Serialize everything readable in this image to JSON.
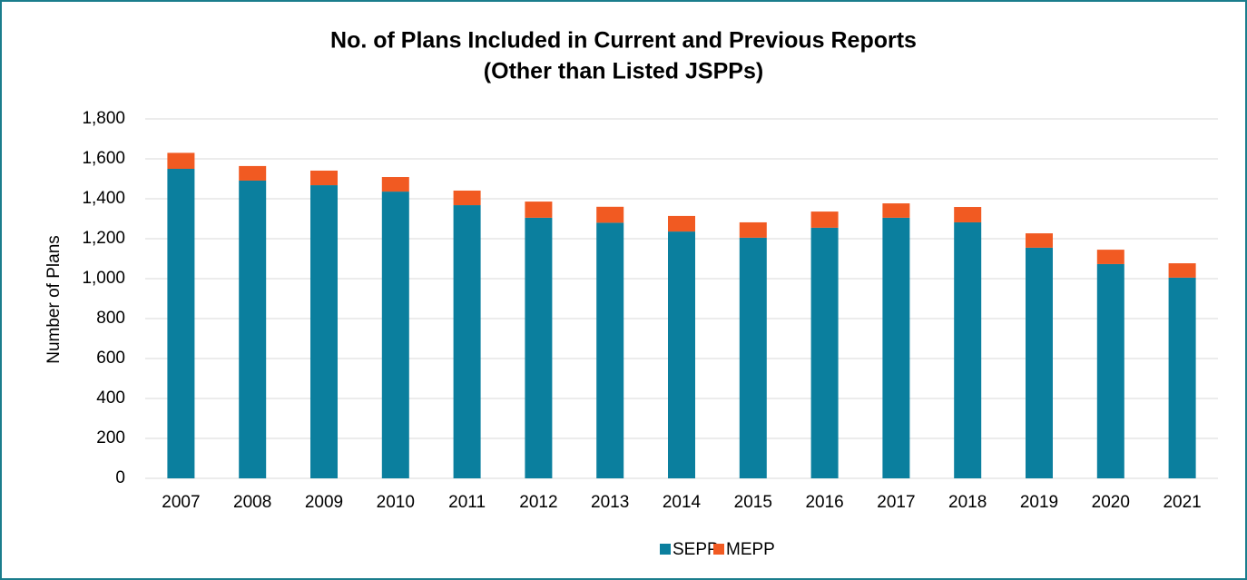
{
  "chart_data": {
    "type": "stacked_bar",
    "title": [
      "No. of Plans Included in Current and Previous Reports",
      "(Other than Listed JSPPs)"
    ],
    "y_label": "Number of Plans",
    "categories": [
      "2007",
      "2008",
      "2009",
      "2010",
      "2011",
      "2012",
      "2013",
      "2014",
      "2015",
      "2016",
      "2017",
      "2018",
      "2019",
      "2020",
      "2021"
    ],
    "series": [
      {
        "name": "SEPP",
        "color": "#0b7f9e",
        "values": [
          1550,
          1491,
          1468,
          1436,
          1368,
          1305,
          1280,
          1236,
          1205,
          1255,
          1305,
          1282,
          1155,
          1073,
          1005
        ]
      },
      {
        "name": "MEPP",
        "color": "#f15a22",
        "values": [
          80,
          73,
          73,
          73,
          73,
          81,
          80,
          78,
          77,
          81,
          72,
          77,
          72,
          72,
          72
        ]
      }
    ],
    "ylim": [
      0,
      1800
    ],
    "yticks": [
      0,
      200,
      400,
      600,
      800,
      {
        "value": 1000,
        "label": "1,000"
      },
      {
        "value": 1200,
        "label": "1,200"
      },
      {
        "value": 1400,
        "label": "1,400"
      },
      {
        "value": 1600,
        "label": "1,600"
      },
      {
        "value": 1800,
        "label": "1,800"
      }
    ],
    "grid": true,
    "legend": "bottom"
  }
}
